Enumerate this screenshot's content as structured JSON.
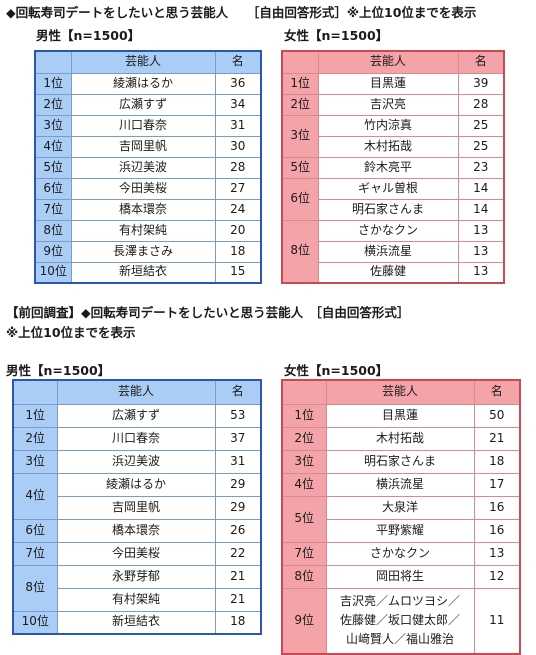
{
  "titles": {
    "current": "◆回転寿司デートをしたいと思う芸能人　　［自由回答形式］※上位10位までを表示",
    "previous_line1": "【前回調査】◆回転寿司デートをしたいと思う芸能人　［自由回答形式］",
    "previous_line2": "※上位10位までを表示"
  },
  "headers": {
    "person": "芸能人",
    "count": "名"
  },
  "current": {
    "male": {
      "label": "男性【n=1500】",
      "rows": [
        {
          "rank": "1位",
          "name": "綾瀬はるか",
          "count": "36"
        },
        {
          "rank": "2位",
          "name": "広瀬すず",
          "count": "34"
        },
        {
          "rank": "3位",
          "name": "川口春奈",
          "count": "31"
        },
        {
          "rank": "4位",
          "name": "吉岡里帆",
          "count": "30"
        },
        {
          "rank": "5位",
          "name": "浜辺美波",
          "count": "28"
        },
        {
          "rank": "6位",
          "name": "今田美桜",
          "count": "27"
        },
        {
          "rank": "7位",
          "name": "橋本環奈",
          "count": "24"
        },
        {
          "rank": "8位",
          "name": "有村架純",
          "count": "20"
        },
        {
          "rank": "9位",
          "name": "長澤まさみ",
          "count": "18"
        },
        {
          "rank": "10位",
          "name": "新垣結衣",
          "count": "15"
        }
      ]
    },
    "female": {
      "label": "女性【n=1500】",
      "rows": [
        {
          "rank": "1位",
          "name": "目黒蓮",
          "count": "39"
        },
        {
          "rank": "2位",
          "name": "吉沢亮",
          "count": "28"
        },
        {
          "rank": "3位",
          "name": "竹内涼真",
          "count": "25"
        },
        {
          "rank": "",
          "name": "木村拓哉",
          "count": "25"
        },
        {
          "rank": "5位",
          "name": "鈴木亮平",
          "count": "23"
        },
        {
          "rank": "6位",
          "name": "ギャル曽根",
          "count": "14"
        },
        {
          "rank": "",
          "name": "明石家さんま",
          "count": "14"
        },
        {
          "rank": "8位",
          "name": "さかなクン",
          "count": "13"
        },
        {
          "rank": "",
          "name": "横浜流星",
          "count": "13"
        },
        {
          "rank": "",
          "name": "佐藤健",
          "count": "13"
        }
      ]
    }
  },
  "previous": {
    "male": {
      "label": "男性【n=1500】",
      "rows": [
        {
          "rank": "1位",
          "name": "広瀬すず",
          "count": "53"
        },
        {
          "rank": "2位",
          "name": "川口春奈",
          "count": "37"
        },
        {
          "rank": "3位",
          "name": "浜辺美波",
          "count": "31"
        },
        {
          "rank": "4位",
          "name": "綾瀬はるか",
          "count": "29"
        },
        {
          "rank": "",
          "name": "吉岡里帆",
          "count": "29"
        },
        {
          "rank": "6位",
          "name": "橋本環奈",
          "count": "26"
        },
        {
          "rank": "7位",
          "name": "今田美桜",
          "count": "22"
        },
        {
          "rank": "8位",
          "name": "永野芽郁",
          "count": "21"
        },
        {
          "rank": "",
          "name": "有村架純",
          "count": "21"
        },
        {
          "rank": "10位",
          "name": "新垣結衣",
          "count": "18"
        }
      ]
    },
    "female": {
      "label": "女性【n=1500】",
      "rows": [
        {
          "rank": "1位",
          "name": "目黒蓮",
          "count": "50"
        },
        {
          "rank": "2位",
          "name": "木村拓哉",
          "count": "21"
        },
        {
          "rank": "3位",
          "name": "明石家さんま",
          "count": "18"
        },
        {
          "rank": "4位",
          "name": "横浜流星",
          "count": "17"
        },
        {
          "rank": "5位",
          "name": "大泉洋",
          "count": "16"
        },
        {
          "rank": "",
          "name": "平野紫耀",
          "count": "16"
        },
        {
          "rank": "7位",
          "name": "さかなクン",
          "count": "13"
        },
        {
          "rank": "8位",
          "name": "岡田将生",
          "count": "12"
        },
        {
          "rank": "9位",
          "name_lines": [
            "吉沢亮／ムロツヨシ／",
            "佐藤健／坂口健太郎／",
            "山﨑賢人／福山雅治"
          ],
          "count": "11"
        }
      ]
    }
  }
}
